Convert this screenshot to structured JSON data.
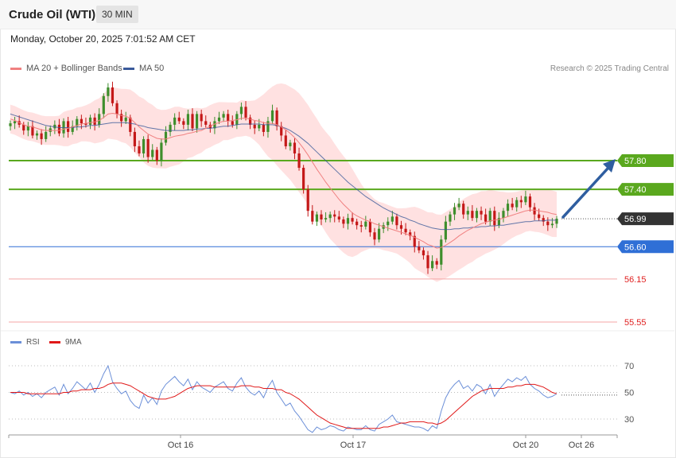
{
  "header": {
    "title": "Crude Oil (WTI)",
    "timeframe": "30 MIN"
  },
  "datetime": "Monday, October 20, 2025 7:01:52 AM CET",
  "legend": {
    "ma20": "MA 20 + Bollinger Bands",
    "ma50": "MA 50",
    "credit": "Research © 2025 Trading Central"
  },
  "rsi_legend": {
    "rsi": "RSI",
    "ma9": "9MA"
  },
  "colors": {
    "bull": "#3e8e2c",
    "bear": "#c41818",
    "ma20": "#f08080",
    "ma50": "#3a5a9a",
    "band_fill": "#ffdcdc",
    "resistance": "#5aa81e",
    "pivot": "#2f6fd6",
    "support": "#f4a6a6",
    "support_text": "#e02020",
    "rsi": "#6b8fd8",
    "rsi_ma": "#e01818",
    "arrow": "#2f5ea0",
    "last": "#333333"
  },
  "chart_data": [
    {
      "type": "candlestick",
      "title": "Crude Oil (WTI)",
      "timeframe": "30 MIN",
      "ylim": [
        55.5,
        58.0
      ],
      "x_ticks": [
        "Oct 16",
        "Oct 17",
        "Oct 20",
        "Oct 26"
      ],
      "levels": [
        {
          "value": 57.8,
          "label": "57.80",
          "kind": "resistance"
        },
        {
          "value": 57.4,
          "label": "57.40",
          "kind": "resistance"
        },
        {
          "value": 56.99,
          "label": "56.99",
          "kind": "last"
        },
        {
          "value": 56.6,
          "label": "56.60",
          "kind": "pivot"
        },
        {
          "value": 56.15,
          "label": "56.15",
          "kind": "support"
        },
        {
          "value": 55.55,
          "label": "55.55",
          "kind": "support"
        }
      ],
      "closes": [
        58.32,
        58.35,
        58.3,
        58.22,
        58.28,
        58.15,
        58.18,
        58.1,
        58.2,
        58.25,
        58.3,
        58.18,
        58.35,
        58.2,
        58.28,
        58.38,
        58.32,
        58.3,
        58.4,
        58.3,
        58.45,
        58.7,
        58.82,
        58.6,
        58.45,
        58.35,
        58.4,
        58.2,
        58.0,
        57.9,
        58.1,
        57.85,
        57.95,
        57.8,
        58.05,
        58.2,
        58.3,
        58.4,
        58.35,
        58.3,
        58.45,
        58.25,
        58.45,
        58.35,
        58.3,
        58.25,
        58.35,
        58.4,
        58.45,
        58.35,
        58.3,
        58.45,
        58.55,
        58.4,
        58.3,
        58.25,
        58.3,
        58.2,
        58.35,
        58.5,
        58.28,
        58.15,
        58.0,
        58.05,
        57.9,
        57.7,
        57.4,
        57.1,
        56.95,
        57.05,
        56.98,
        57.0,
        57.05,
        57.02,
        56.98,
        56.92,
        57.0,
        56.95,
        56.9,
        56.88,
        56.95,
        56.8,
        56.7,
        56.85,
        56.9,
        56.95,
        57.02,
        56.9,
        56.85,
        56.8,
        56.75,
        56.6,
        56.55,
        56.48,
        56.3,
        56.4,
        56.35,
        56.7,
        56.95,
        57.05,
        57.15,
        57.2,
        57.05,
        57.1,
        57.0,
        57.1,
        57.05,
        56.95,
        57.1,
        56.9,
        57.0,
        57.1,
        57.2,
        57.15,
        57.25,
        57.22,
        57.3,
        57.15,
        57.05,
        57.0,
        56.95,
        56.9,
        56.92,
        56.99
      ],
      "ma20": [
        58.38,
        58.36,
        58.33,
        58.3,
        58.28,
        58.27,
        58.25,
        58.23,
        58.22,
        58.22,
        58.22,
        58.22,
        58.24,
        58.25,
        58.27,
        58.29,
        58.31,
        58.32,
        58.33,
        58.34,
        58.36,
        58.4,
        58.45,
        58.46,
        58.45,
        58.43,
        58.42,
        58.39,
        58.33,
        58.27,
        58.22,
        58.17,
        58.14,
        58.11,
        58.1,
        58.1,
        58.12,
        58.14,
        58.15,
        58.16,
        58.18,
        58.19,
        58.21,
        58.22,
        58.25,
        58.28,
        58.31,
        58.33,
        58.35,
        58.35,
        58.36,
        58.37,
        58.39,
        58.39,
        58.38,
        58.36,
        58.35,
        58.33,
        58.32,
        58.32,
        58.3,
        58.27,
        58.23,
        58.18,
        58.12,
        58.05,
        57.97,
        57.88,
        57.78,
        57.68,
        57.59,
        57.5,
        57.42,
        57.34,
        57.26,
        57.19,
        57.13,
        57.07,
        57.03,
        57.0,
        56.97,
        56.95,
        56.92,
        56.9,
        56.88,
        56.86,
        56.84,
        56.82,
        56.8,
        56.78,
        56.76,
        56.73,
        56.7,
        56.67,
        56.63,
        56.61,
        56.58,
        56.59,
        56.62,
        56.66,
        56.7,
        56.75,
        56.79,
        56.83,
        56.86,
        56.89,
        56.92,
        56.94,
        56.96,
        56.97,
        56.98,
        57.0,
        57.02,
        57.04,
        57.06,
        57.08,
        57.1,
        57.11,
        57.11,
        57.1,
        57.09,
        57.08,
        57.06,
        57.05
      ],
      "ma50": [
        58.45,
        58.43,
        58.41,
        58.39,
        58.37,
        58.35,
        58.33,
        58.31,
        58.29,
        58.28,
        58.27,
        58.26,
        58.26,
        58.26,
        58.26,
        58.27,
        58.27,
        58.28,
        58.29,
        58.29,
        58.3,
        58.31,
        58.32,
        58.33,
        58.33,
        58.33,
        58.33,
        58.32,
        58.31,
        58.29,
        58.28,
        58.26,
        58.25,
        58.24,
        58.23,
        58.22,
        58.22,
        58.22,
        58.22,
        58.22,
        58.23,
        58.23,
        58.24,
        58.24,
        58.25,
        58.25,
        58.26,
        58.27,
        58.28,
        58.28,
        58.29,
        58.3,
        58.31,
        58.31,
        58.31,
        58.31,
        58.31,
        58.3,
        58.3,
        58.3,
        58.29,
        58.27,
        58.25,
        58.22,
        58.18,
        58.14,
        58.09,
        58.04,
        57.98,
        57.92,
        57.86,
        57.8,
        57.74,
        57.68,
        57.62,
        57.56,
        57.5,
        57.45,
        57.4,
        57.35,
        57.3,
        57.26,
        57.22,
        57.18,
        57.14,
        57.11,
        57.08,
        57.05,
        57.02,
        57.0,
        56.97,
        56.95,
        56.92,
        56.9,
        56.88,
        56.86,
        56.85,
        56.84,
        56.84,
        56.84,
        56.85,
        56.85,
        56.86,
        56.86,
        56.87,
        56.87,
        56.88,
        56.88,
        56.89,
        56.89,
        56.9,
        56.9,
        56.91,
        56.92,
        56.93,
        56.94,
        56.95,
        56.95,
        56.96,
        56.96,
        56.96,
        56.97,
        56.97,
        56.97
      ]
    },
    {
      "type": "line",
      "title": "RSI",
      "ylim": [
        20,
        80
      ],
      "y_ticks": [
        30,
        50,
        70
      ],
      "series": [
        {
          "name": "RSI",
          "values": [
            50,
            49,
            51,
            48,
            50,
            47,
            49,
            46,
            50,
            52,
            54,
            48,
            56,
            49,
            53,
            58,
            55,
            52,
            57,
            50,
            56,
            64,
            70,
            58,
            53,
            49,
            51,
            44,
            40,
            38,
            48,
            42,
            46,
            41,
            51,
            56,
            59,
            62,
            58,
            55,
            60,
            52,
            58,
            54,
            52,
            50,
            54,
            56,
            58,
            53,
            51,
            57,
            61,
            54,
            50,
            48,
            51,
            46,
            54,
            59,
            50,
            45,
            40,
            42,
            36,
            32,
            27,
            22,
            20,
            24,
            22,
            23,
            25,
            24,
            22,
            21,
            24,
            23,
            22,
            22,
            25,
            22,
            21,
            26,
            28,
            30,
            33,
            28,
            27,
            26,
            25,
            24,
            24,
            23,
            21,
            25,
            23,
            36,
            46,
            52,
            56,
            59,
            53,
            55,
            51,
            56,
            54,
            49,
            56,
            47,
            52,
            56,
            60,
            58,
            61,
            59,
            62,
            56,
            53,
            51,
            48,
            46,
            47,
            49
          ]
        },
        {
          "name": "9MA",
          "values": [
            50,
            50,
            50,
            50,
            49,
            49,
            49,
            49,
            49,
            49,
            49,
            49,
            50,
            50,
            51,
            51,
            52,
            52,
            52,
            53,
            53,
            54,
            56,
            57,
            57,
            57,
            56,
            55,
            53,
            51,
            49,
            47,
            46,
            45,
            45,
            45,
            46,
            47,
            49,
            51,
            53,
            54,
            55,
            55,
            55,
            55,
            54,
            54,
            54,
            54,
            54,
            54,
            55,
            55,
            55,
            54,
            54,
            53,
            53,
            53,
            52,
            52,
            50,
            49,
            47,
            45,
            42,
            39,
            36,
            33,
            31,
            29,
            27,
            26,
            25,
            24,
            23,
            23,
            23,
            23,
            23,
            23,
            23,
            23,
            24,
            24,
            25,
            26,
            27,
            27,
            28,
            28,
            28,
            28,
            27,
            27,
            26,
            27,
            29,
            32,
            35,
            38,
            41,
            44,
            47,
            49,
            51,
            52,
            53,
            53,
            53,
            53,
            54,
            54,
            55,
            55,
            56,
            56,
            56,
            55,
            54,
            52,
            50,
            49
          ]
        }
      ]
    }
  ]
}
